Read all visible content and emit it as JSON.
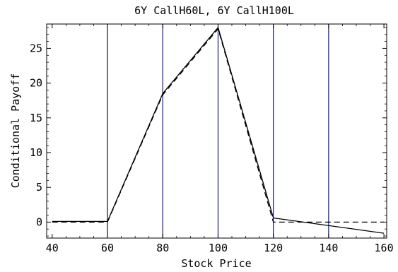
{
  "chart_data": {
    "type": "line",
    "title": "6Y CallH60L, 6Y CallH100L",
    "xlabel": "Stock Price",
    "ylabel": "Conditional Payoff",
    "xlim": [
      38,
      161
    ],
    "ylim": [
      -2.3,
      28.5
    ],
    "x_ticks": [
      40,
      60,
      80,
      100,
      120,
      140,
      160
    ],
    "x_tick_labels": [
      "40",
      "60",
      "80",
      "100",
      "120",
      "140",
      "160"
    ],
    "y_ticks": [
      0,
      5,
      10,
      15,
      20,
      25
    ],
    "y_tick_labels": [
      "0",
      "5",
      "10",
      "15",
      "20",
      "25"
    ],
    "grid": false,
    "legend": "none",
    "vertical_lines": [
      {
        "x": 60,
        "color": "#000000"
      },
      {
        "x": 80,
        "color": "#00008b"
      },
      {
        "x": 100,
        "color": "#00008b"
      },
      {
        "x": 120,
        "color": "#00008b"
      },
      {
        "x": 140,
        "color": "#00008b"
      }
    ],
    "series": [
      {
        "style": "solid",
        "color": "#000000",
        "x": [
          40,
          60,
          80,
          100,
          120,
          160
        ],
        "y": [
          0.1,
          0.1,
          18.5,
          28.0,
          0.6,
          -1.6
        ]
      },
      {
        "style": "dashed",
        "color": "#000000",
        "x": [
          40,
          60,
          80,
          100,
          120,
          160
        ],
        "y": [
          0,
          0,
          18.3,
          27.8,
          0,
          0
        ]
      }
    ]
  }
}
